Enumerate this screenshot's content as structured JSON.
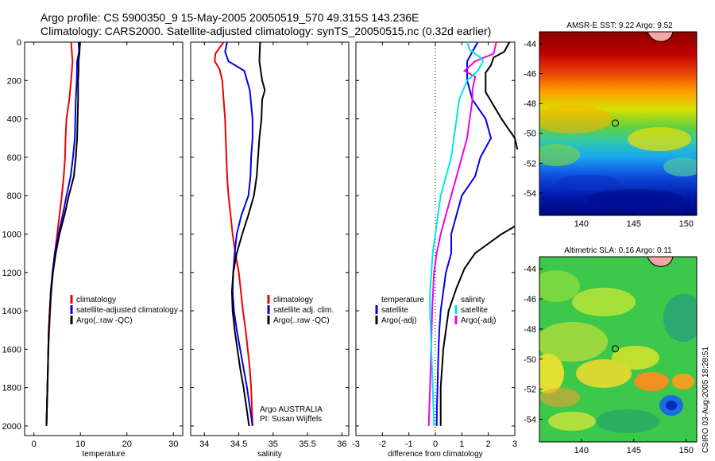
{
  "header": {
    "line1": "Argo profile: CS 5900350_9 15-May-2005 20050519_570 49.315S 143.236E",
    "line2": "Climatology: CARS2000. Satellite-adjusted climatology: synTS_20050515.nc (0.32d earlier)"
  },
  "credit": {
    "line1": "Argo AUSTRALIA",
    "line2": "PI: Susan Wijffels"
  },
  "timestamp": "CSIRO 03-Aug-2005 18:28:51",
  "colors": {
    "climatology": "#ee0000",
    "satellite": "#0000ee",
    "argo": "#000000",
    "temp_diff": "#00e5ee",
    "sal_diff": "#ee00ee",
    "axis": "#000000"
  },
  "chart_data": [
    {
      "type": "line",
      "id": "temperature",
      "xlabel": "temperature",
      "xlim": [
        -2,
        32
      ],
      "xticks": [
        0,
        10,
        20,
        30
      ],
      "ylim": [
        0,
        2050
      ],
      "yticks": [
        0,
        200,
        400,
        600,
        800,
        1000,
        1200,
        1400,
        1600,
        1800,
        2000
      ],
      "y_reversed": true,
      "legend": [
        "climatology",
        "satellite-adjusted climatology",
        "Argo(..raw -QC)"
      ],
      "series": [
        {
          "name": "climatology",
          "color_key": "climatology",
          "points": [
            [
              8.0,
              0
            ],
            [
              8.3,
              100
            ],
            [
              8.0,
              200
            ],
            [
              7.6,
              300
            ],
            [
              7.0,
              400
            ],
            [
              6.8,
              500
            ],
            [
              6.7,
              600
            ],
            [
              6.4,
              700
            ],
            [
              6.0,
              800
            ],
            [
              5.5,
              900
            ],
            [
              5.0,
              1000
            ],
            [
              4.5,
              1100
            ],
            [
              4.0,
              1200
            ],
            [
              3.7,
              1300
            ],
            [
              3.5,
              1400
            ],
            [
              3.3,
              1500
            ],
            [
              3.1,
              1600
            ],
            [
              3.0,
              1700
            ],
            [
              2.9,
              1800
            ],
            [
              2.8,
              1900
            ],
            [
              2.7,
              2000
            ]
          ]
        },
        {
          "name": "satellite-adjusted climatology",
          "color_key": "satellite",
          "points": [
            [
              9.6,
              0
            ],
            [
              9.7,
              50
            ],
            [
              9.3,
              100
            ],
            [
              9.2,
              200
            ],
            [
              9.0,
              300
            ],
            [
              8.9,
              400
            ],
            [
              8.8,
              500
            ],
            [
              8.4,
              600
            ],
            [
              7.9,
              700
            ],
            [
              7.0,
              800
            ],
            [
              6.2,
              900
            ],
            [
              5.3,
              1000
            ],
            [
              4.5,
              1100
            ],
            [
              4.0,
              1200
            ],
            [
              3.6,
              1300
            ],
            [
              3.4,
              1400
            ],
            [
              3.2,
              1500
            ],
            [
              3.1,
              1600
            ],
            [
              3.0,
              1700
            ],
            [
              2.9,
              1800
            ],
            [
              2.8,
              1900
            ],
            [
              2.7,
              2000
            ]
          ]
        },
        {
          "name": "Argo(..raw -QC)",
          "color_key": "argo",
          "points": [
            [
              9.9,
              0
            ],
            [
              9.8,
              50
            ],
            [
              9.6,
              100
            ],
            [
              9.6,
              150
            ],
            [
              9.5,
              200
            ],
            [
              9.5,
              300
            ],
            [
              9.4,
              400
            ],
            [
              9.3,
              500
            ],
            [
              9.0,
              600
            ],
            [
              8.6,
              700
            ],
            [
              7.5,
              800
            ],
            [
              6.6,
              900
            ],
            [
              5.5,
              1000
            ],
            [
              4.7,
              1100
            ],
            [
              4.1,
              1200
            ],
            [
              3.7,
              1300
            ],
            [
              3.4,
              1400
            ],
            [
              3.2,
              1500
            ],
            [
              3.1,
              1600
            ],
            [
              3.0,
              1700
            ],
            [
              2.9,
              1800
            ],
            [
              2.8,
              1900
            ],
            [
              2.7,
              2000
            ]
          ]
        }
      ]
    },
    {
      "type": "line",
      "id": "salinity",
      "xlabel": "salinity",
      "xlim": [
        33.8,
        36.1
      ],
      "xticks": [
        34,
        34.5,
        35,
        35.5,
        36
      ],
      "ylim": [
        0,
        2050
      ],
      "y_reversed": true,
      "legend": [
        "climatology",
        "satellite adj. clim.",
        "Argo(..raw -QC)"
      ],
      "series": [
        {
          "name": "climatology",
          "color_key": "climatology",
          "points": [
            [
              34.28,
              0
            ],
            [
              34.16,
              60
            ],
            [
              34.15,
              100
            ],
            [
              34.22,
              140
            ],
            [
              34.26,
              200
            ],
            [
              34.28,
              300
            ],
            [
              34.3,
              400
            ],
            [
              34.31,
              500
            ],
            [
              34.32,
              600
            ],
            [
              34.33,
              700
            ],
            [
              34.35,
              800
            ],
            [
              34.38,
              900
            ],
            [
              34.41,
              1000
            ],
            [
              34.45,
              1100
            ],
            [
              34.5,
              1200
            ],
            [
              34.53,
              1300
            ],
            [
              34.56,
              1400
            ],
            [
              34.6,
              1500
            ],
            [
              34.63,
              1600
            ],
            [
              34.66,
              1700
            ],
            [
              34.68,
              1800
            ],
            [
              34.69,
              1900
            ],
            [
              34.7,
              2000
            ]
          ]
        },
        {
          "name": "satellite adj. clim.",
          "color_key": "satellite",
          "points": [
            [
              34.33,
              0
            ],
            [
              34.3,
              50
            ],
            [
              34.35,
              100
            ],
            [
              34.58,
              150
            ],
            [
              34.66,
              250
            ],
            [
              34.7,
              400
            ],
            [
              34.7,
              500
            ],
            [
              34.68,
              600
            ],
            [
              34.67,
              700
            ],
            [
              34.64,
              800
            ],
            [
              34.54,
              900
            ],
            [
              34.47,
              1000
            ],
            [
              34.44,
              1100
            ],
            [
              34.42,
              1200
            ],
            [
              34.41,
              1300
            ],
            [
              34.43,
              1400
            ],
            [
              34.47,
              1500
            ],
            [
              34.52,
              1600
            ],
            [
              34.57,
              1700
            ],
            [
              34.62,
              1800
            ],
            [
              34.66,
              1900
            ],
            [
              34.7,
              2000
            ]
          ]
        },
        {
          "name": "Argo(..raw -QC)",
          "color_key": "argo",
          "points": [
            [
              34.81,
              0
            ],
            [
              34.8,
              100
            ],
            [
              34.84,
              200
            ],
            [
              34.88,
              250
            ],
            [
              34.84,
              300
            ],
            [
              34.83,
              400
            ],
            [
              34.8,
              500
            ],
            [
              34.78,
              600
            ],
            [
              34.76,
              700
            ],
            [
              34.72,
              800
            ],
            [
              34.64,
              900
            ],
            [
              34.55,
              1000
            ],
            [
              34.47,
              1100
            ],
            [
              34.42,
              1200
            ],
            [
              34.4,
              1300
            ],
            [
              34.41,
              1400
            ],
            [
              34.44,
              1500
            ],
            [
              34.48,
              1600
            ],
            [
              34.52,
              1700
            ],
            [
              34.57,
              1800
            ],
            [
              34.61,
              1900
            ],
            [
              34.65,
              2000
            ]
          ]
        }
      ]
    },
    {
      "type": "line",
      "id": "difference",
      "xlabel": "difference from climatology",
      "xlim": [
        -3,
        3
      ],
      "xticks": [
        -3,
        -2,
        -1,
        0,
        1,
        2,
        3
      ],
      "ylim": [
        0,
        2050
      ],
      "y_reversed": true,
      "zero_line": "dotted",
      "legend": [
        "temperature",
        "satellite",
        "Argo(-adj)",
        "salinity",
        "satellite",
        "Argo(-adj)"
      ],
      "series": [
        {
          "name": "temperature satellite",
          "color_key": "satellite",
          "points": [
            [
              1.6,
              0
            ],
            [
              1.4,
              50
            ],
            [
              1.2,
              100
            ],
            [
              1.2,
              200
            ],
            [
              1.4,
              300
            ],
            [
              1.9,
              400
            ],
            [
              2.1,
              500
            ],
            [
              1.7,
              600
            ],
            [
              1.5,
              700
            ],
            [
              1.0,
              800
            ],
            [
              0.8,
              900
            ],
            [
              0.6,
              1000
            ],
            [
              0.6,
              1100
            ],
            [
              0.4,
              1200
            ],
            [
              0.3,
              1300
            ],
            [
              0.2,
              1400
            ],
            [
              0.15,
              1500
            ],
            [
              0.12,
              1600
            ],
            [
              0.1,
              1700
            ],
            [
              0.08,
              1800
            ],
            [
              0.06,
              1900
            ],
            [
              0.05,
              2000
            ]
          ]
        },
        {
          "name": "temperature Argo(-adj)",
          "color_key": "argo",
          "points": [
            [
              2.8,
              0
            ],
            [
              2.6,
              50
            ],
            [
              2.2,
              80
            ],
            [
              2.1,
              120
            ],
            [
              1.9,
              160
            ],
            [
              1.9,
              260
            ],
            [
              2.2,
              330
            ],
            [
              2.5,
              400
            ],
            [
              2.8,
              460
            ],
            [
              3.0,
              500
            ],
            [
              3.1,
              560
            ]
          ]
        },
        {
          "name": "temperature Argo(-adj) deep",
          "color_key": "argo",
          "points": [
            [
              3.0,
              960
            ],
            [
              2.5,
              1000
            ],
            [
              2.0,
              1050
            ],
            [
              1.5,
              1100
            ],
            [
              1.1,
              1180
            ],
            [
              0.8,
              1280
            ],
            [
              0.5,
              1400
            ],
            [
              0.4,
              1500
            ],
            [
              0.3,
              1600
            ],
            [
              0.2,
              1800
            ],
            [
              0.2,
              2000
            ]
          ]
        },
        {
          "name": "salinity satellite",
          "color_key": "sal_diff",
          "points": [
            [
              2.3,
              0
            ],
            [
              2.2,
              60
            ],
            [
              1.5,
              100
            ],
            [
              1.1,
              150
            ],
            [
              1.5,
              180
            ],
            [
              1.4,
              250
            ],
            [
              1.4,
              300
            ],
            [
              1.3,
              400
            ],
            [
              1.2,
              500
            ],
            [
              1.0,
              600
            ],
            [
              0.8,
              700
            ],
            [
              0.6,
              800
            ],
            [
              0.4,
              900
            ],
            [
              0.2,
              1000
            ],
            [
              0.05,
              1100
            ],
            [
              -0.05,
              1200
            ],
            [
              -0.12,
              1400
            ],
            [
              -0.16,
              1600
            ],
            [
              -0.2,
              1800
            ],
            [
              -0.25,
              2000
            ]
          ]
        },
        {
          "name": "temperature difference",
          "color_key": "temp_diff",
          "points": [
            [
              1.2,
              0
            ],
            [
              1.3,
              40
            ],
            [
              1.7,
              80
            ],
            [
              1.8,
              100
            ],
            [
              1.6,
              150
            ],
            [
              1.2,
              200
            ],
            [
              0.9,
              300
            ],
            [
              0.8,
              400
            ],
            [
              0.7,
              500
            ],
            [
              0.6,
              600
            ],
            [
              0.4,
              700
            ],
            [
              0.2,
              800
            ],
            [
              0.1,
              900
            ],
            [
              0.0,
              1000
            ],
            [
              -0.1,
              1100
            ],
            [
              -0.15,
              1200
            ],
            [
              -0.2,
              1300
            ],
            [
              -0.2,
              1400
            ],
            [
              -0.15,
              1600
            ],
            [
              -0.1,
              1800
            ],
            [
              -0.05,
              2000
            ]
          ]
        }
      ]
    },
    {
      "type": "heatmap",
      "id": "sst_map",
      "title": "AMSR-E SST: 9.22 Argo: 9.52",
      "xlim": [
        136,
        151
      ],
      "xticks": [
        140,
        145,
        150
      ],
      "ylim": [
        -55.5,
        -43.2
      ],
      "yticks": [
        -44,
        -46,
        -48,
        -50,
        -52,
        -54
      ],
      "marker": [
        143.236,
        -49.315
      ]
    },
    {
      "type": "heatmap",
      "id": "sla_map",
      "title": "Altimetric SLA: 0.16 Argo: 0.11",
      "xlim": [
        136,
        151
      ],
      "xticks": [
        140,
        145,
        150
      ],
      "ylim": [
        -55.5,
        -43.2
      ],
      "yticks": [
        -44,
        -46,
        -48,
        -50,
        -52,
        -54
      ],
      "marker": [
        143.236,
        -49.315
      ]
    }
  ]
}
